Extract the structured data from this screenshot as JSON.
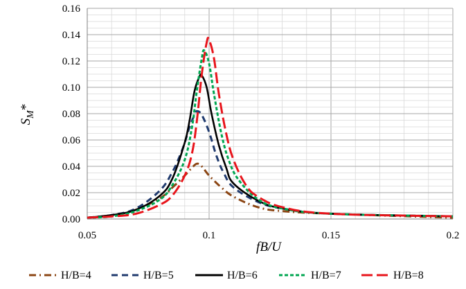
{
  "chart_data": {
    "type": "line",
    "xlabel": "fB/U",
    "ylabel": "S_M*",
    "xlim": [
      0.05,
      0.2
    ],
    "ylim": [
      0,
      0.16
    ],
    "x_ticks": [
      "0.05",
      "0.1",
      "0.15",
      "0.2"
    ],
    "y_ticks": [
      "0.00",
      "0.02",
      "0.04",
      "0.06",
      "0.08",
      "0.10",
      "0.12",
      "0.14",
      "0.16"
    ],
    "grid": true,
    "legend_position": "bottom",
    "series": [
      {
        "name": "H/B=4",
        "color": "#8B4513",
        "dash": "dash-dot",
        "x": [
          0.05,
          0.06,
          0.07,
          0.08,
          0.085,
          0.09,
          0.093,
          0.095,
          0.097,
          0.1,
          0.105,
          0.11,
          0.12,
          0.13,
          0.15,
          0.2
        ],
        "y": [
          0.001,
          0.003,
          0.007,
          0.016,
          0.024,
          0.033,
          0.039,
          0.042,
          0.04,
          0.033,
          0.024,
          0.017,
          0.009,
          0.006,
          0.004,
          0.001
        ]
      },
      {
        "name": "H/B=5",
        "color": "#1F3A6E",
        "dash": "dash",
        "x": [
          0.05,
          0.06,
          0.07,
          0.08,
          0.085,
          0.088,
          0.09,
          0.092,
          0.094,
          0.095,
          0.097,
          0.1,
          0.103,
          0.106,
          0.11,
          0.12,
          0.13,
          0.15,
          0.2
        ],
        "y": [
          0.001,
          0.003,
          0.008,
          0.022,
          0.036,
          0.048,
          0.058,
          0.07,
          0.079,
          0.082,
          0.079,
          0.066,
          0.048,
          0.035,
          0.024,
          0.013,
          0.008,
          0.004,
          0.002
        ]
      },
      {
        "name": "H/B=6",
        "color": "#000000",
        "dash": "solid",
        "x": [
          0.05,
          0.06,
          0.07,
          0.08,
          0.085,
          0.09,
          0.092,
          0.094,
          0.096,
          0.097,
          0.099,
          0.101,
          0.104,
          0.107,
          0.11,
          0.12,
          0.13,
          0.15,
          0.2
        ],
        "y": [
          0.001,
          0.003,
          0.007,
          0.018,
          0.031,
          0.058,
          0.075,
          0.097,
          0.108,
          0.109,
          0.1,
          0.08,
          0.056,
          0.039,
          0.027,
          0.014,
          0.008,
          0.004,
          0.002
        ]
      },
      {
        "name": "H/B=7",
        "color": "#00A651",
        "dash": "short-dash",
        "x": [
          0.05,
          0.06,
          0.07,
          0.08,
          0.085,
          0.09,
          0.093,
          0.095,
          0.097,
          0.098,
          0.1,
          0.102,
          0.105,
          0.108,
          0.112,
          0.12,
          0.13,
          0.15,
          0.2
        ],
        "y": [
          0.001,
          0.002,
          0.006,
          0.015,
          0.026,
          0.045,
          0.07,
          0.098,
          0.122,
          0.128,
          0.118,
          0.095,
          0.065,
          0.045,
          0.03,
          0.015,
          0.008,
          0.004,
          0.002
        ]
      },
      {
        "name": "H/B=8",
        "color": "#E8141B",
        "dash": "long-dash",
        "x": [
          0.05,
          0.06,
          0.07,
          0.08,
          0.085,
          0.09,
          0.093,
          0.095,
          0.097,
          0.099,
          0.1,
          0.102,
          0.104,
          0.107,
          0.11,
          0.115,
          0.12,
          0.13,
          0.15,
          0.2
        ],
        "y": [
          0.001,
          0.002,
          0.004,
          0.011,
          0.018,
          0.033,
          0.05,
          0.075,
          0.11,
          0.134,
          0.136,
          0.122,
          0.095,
          0.065,
          0.045,
          0.026,
          0.017,
          0.009,
          0.004,
          0.002
        ]
      }
    ]
  }
}
